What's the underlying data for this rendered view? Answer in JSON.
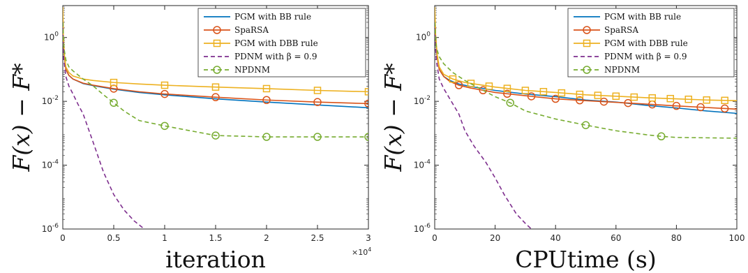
{
  "series_styles": [
    {
      "color": "#0072BD",
      "dash": "",
      "marker": "none"
    },
    {
      "color": "#D95319",
      "dash": "",
      "marker": "circle"
    },
    {
      "color": "#EDB120",
      "dash": "",
      "marker": "square"
    },
    {
      "color": "#7E2F8E",
      "dash": "6,4",
      "marker": "none"
    },
    {
      "color": "#77AC30",
      "dash": "6,4",
      "marker": "circle"
    }
  ],
  "chart_data": [
    {
      "type": "line",
      "xlabel": "iteration",
      "ylabel": "F(x) − F*",
      "x_multiplier": "×10^4",
      "x_multiplier_base": "×10",
      "x_multiplier_exp": "4",
      "xlim": [
        0,
        30000
      ],
      "ylim": [
        1e-06,
        10
      ],
      "yscale": "log",
      "grid": false,
      "legend_position": "top-right",
      "xticks": [
        0,
        5000,
        10000,
        15000,
        20000,
        25000,
        30000
      ],
      "xtick_labels": [
        "0",
        "0.5",
        "1",
        "1.5",
        "2",
        "2.5",
        "3"
      ],
      "yticks": [
        1e-06,
        0.0001,
        0.01,
        1
      ],
      "ytick_labels": [
        {
          "base": "10",
          "exp": "-6"
        },
        {
          "base": "10",
          "exp": "-4"
        },
        {
          "base": "10",
          "exp": "-2"
        },
        {
          "base": "10",
          "exp": "0"
        }
      ],
      "series": [
        {
          "name": "PGM with BB rule",
          "x": [
            0,
            50,
            150,
            300,
            600,
            1000,
            2000,
            3000,
            5000,
            7500,
            10000,
            15000,
            20000,
            25000,
            30000
          ],
          "y": [
            8,
            1.0,
            0.25,
            0.1,
            0.065,
            0.05,
            0.036,
            0.031,
            0.024,
            0.019,
            0.016,
            0.012,
            0.0095,
            0.0077,
            0.0063
          ],
          "markers": []
        },
        {
          "name": "SpaRSA",
          "x": [
            0,
            50,
            150,
            300,
            600,
            1000,
            2000,
            3000,
            5000,
            7500,
            10000,
            15000,
            20000,
            25000,
            30000
          ],
          "y": [
            7,
            1.0,
            0.25,
            0.1,
            0.065,
            0.05,
            0.037,
            0.032,
            0.025,
            0.02,
            0.017,
            0.0135,
            0.011,
            0.0095,
            0.0085
          ],
          "markers": [
            5000,
            10000,
            15000,
            20000,
            25000,
            30000
          ]
        },
        {
          "name": "PGM with DBB rule",
          "x": [
            0,
            50,
            150,
            300,
            600,
            1000,
            2000,
            3000,
            5000,
            7500,
            10000,
            15000,
            20000,
            25000,
            30000
          ],
          "y": [
            9,
            1.2,
            0.3,
            0.12,
            0.08,
            0.062,
            0.05,
            0.045,
            0.039,
            0.035,
            0.032,
            0.028,
            0.025,
            0.022,
            0.02
          ],
          "markers": [
            5000,
            10000,
            15000,
            20000,
            25000,
            30000
          ]
        },
        {
          "name": "PDNM with β = 0.9",
          "x": [
            0,
            100,
            300,
            600,
            1000,
            1500,
            2000,
            3000,
            4000,
            5000,
            6000,
            7000,
            8000
          ],
          "y": [
            2,
            0.2,
            0.06,
            0.03,
            0.017,
            0.008,
            0.004,
            0.0005,
            6e-05,
            1.2e-05,
            4e-06,
            1.8e-06,
            1e-06
          ],
          "markers": []
        },
        {
          "name": "NPDNM",
          "x": [
            0,
            100,
            300,
            600,
            1000,
            2000,
            3000,
            4000,
            5000,
            6000,
            7500,
            10000,
            12500,
            15000,
            20000,
            25000,
            30000
          ],
          "y": [
            3,
            0.5,
            0.2,
            0.12,
            0.09,
            0.05,
            0.03,
            0.016,
            0.009,
            0.005,
            0.0025,
            0.0017,
            0.0012,
            0.00085,
            0.00077,
            0.00077,
            0.00077
          ],
          "markers": [
            5000,
            10000,
            15000,
            20000,
            25000,
            30000
          ]
        }
      ]
    },
    {
      "type": "line",
      "xlabel": "CPUtime (s)",
      "ylabel": "F(x) − F*",
      "xlim": [
        0,
        100
      ],
      "ylim": [
        1e-06,
        10
      ],
      "yscale": "log",
      "grid": false,
      "legend_position": "top-right",
      "xticks": [
        0,
        20,
        40,
        60,
        80,
        100
      ],
      "xtick_labels": [
        "0",
        "20",
        "40",
        "60",
        "80",
        "100"
      ],
      "yticks": [
        1e-06,
        0.0001,
        0.01,
        1
      ],
      "ytick_labels": [
        {
          "base": "10",
          "exp": "-6"
        },
        {
          "base": "10",
          "exp": "-4"
        },
        {
          "base": "10",
          "exp": "-2"
        },
        {
          "base": "10",
          "exp": "0"
        }
      ],
      "series": [
        {
          "name": "PGM with BB rule",
          "x": [
            0,
            0.3,
            0.8,
            1.5,
            3,
            5,
            8,
            12,
            20,
            30,
            40,
            50,
            60,
            70,
            80,
            90,
            100
          ],
          "y": [
            8,
            1.0,
            0.25,
            0.1,
            0.06,
            0.045,
            0.035,
            0.029,
            0.022,
            0.017,
            0.014,
            0.011,
            0.0095,
            0.0075,
            0.0062,
            0.005,
            0.0042
          ],
          "markers": []
        },
        {
          "name": "SpaRSA",
          "x": [
            0,
            0.3,
            0.8,
            1.5,
            3,
            5,
            8,
            12,
            20,
            30,
            40,
            50,
            60,
            70,
            80,
            90,
            100
          ],
          "y": [
            7,
            1.0,
            0.25,
            0.1,
            0.06,
            0.042,
            0.032,
            0.026,
            0.019,
            0.015,
            0.012,
            0.0105,
            0.0093,
            0.0082,
            0.0072,
            0.0064,
            0.0057
          ],
          "markers": [
            8,
            16,
            24,
            32,
            40,
            48,
            56,
            64,
            72,
            80,
            88,
            96
          ]
        },
        {
          "name": "PGM with DBB rule",
          "x": [
            0,
            0.3,
            0.8,
            1.5,
            3,
            6,
            10,
            15,
            20,
            30,
            40,
            50,
            60,
            70,
            80,
            90,
            100
          ],
          "y": [
            9,
            1.2,
            0.3,
            0.12,
            0.07,
            0.05,
            0.039,
            0.033,
            0.028,
            0.022,
            0.019,
            0.016,
            0.0145,
            0.013,
            0.012,
            0.011,
            0.0105
          ],
          "markers": [
            6,
            12,
            18,
            24,
            30,
            36,
            42,
            48,
            54,
            60,
            66,
            72,
            78,
            84,
            90,
            96
          ]
        },
        {
          "name": "PDNM with β = 0.9",
          "x": [
            0,
            0.5,
            1.5,
            3,
            5,
            8,
            10,
            13,
            17,
            20,
            23,
            25,
            27,
            30,
            32
          ],
          "y": [
            2,
            0.2,
            0.05,
            0.025,
            0.012,
            0.004,
            0.0012,
            0.0004,
            0.00012,
            4e-05,
            1.2e-05,
            6e-06,
            3e-06,
            1.5e-06,
            1e-06
          ],
          "markers": []
        },
        {
          "name": "NPDNM",
          "x": [
            0,
            0.5,
            1.5,
            3,
            6,
            10,
            15,
            20,
            25,
            30,
            40,
            50,
            60,
            70,
            75,
            80,
            90,
            100
          ],
          "y": [
            3,
            0.5,
            0.25,
            0.15,
            0.08,
            0.045,
            0.025,
            0.014,
            0.009,
            0.005,
            0.0028,
            0.0018,
            0.0012,
            0.0009,
            0.0008,
            0.00074,
            0.00072,
            0.0007
          ],
          "markers": [
            25,
            50,
            75
          ]
        }
      ]
    }
  ]
}
